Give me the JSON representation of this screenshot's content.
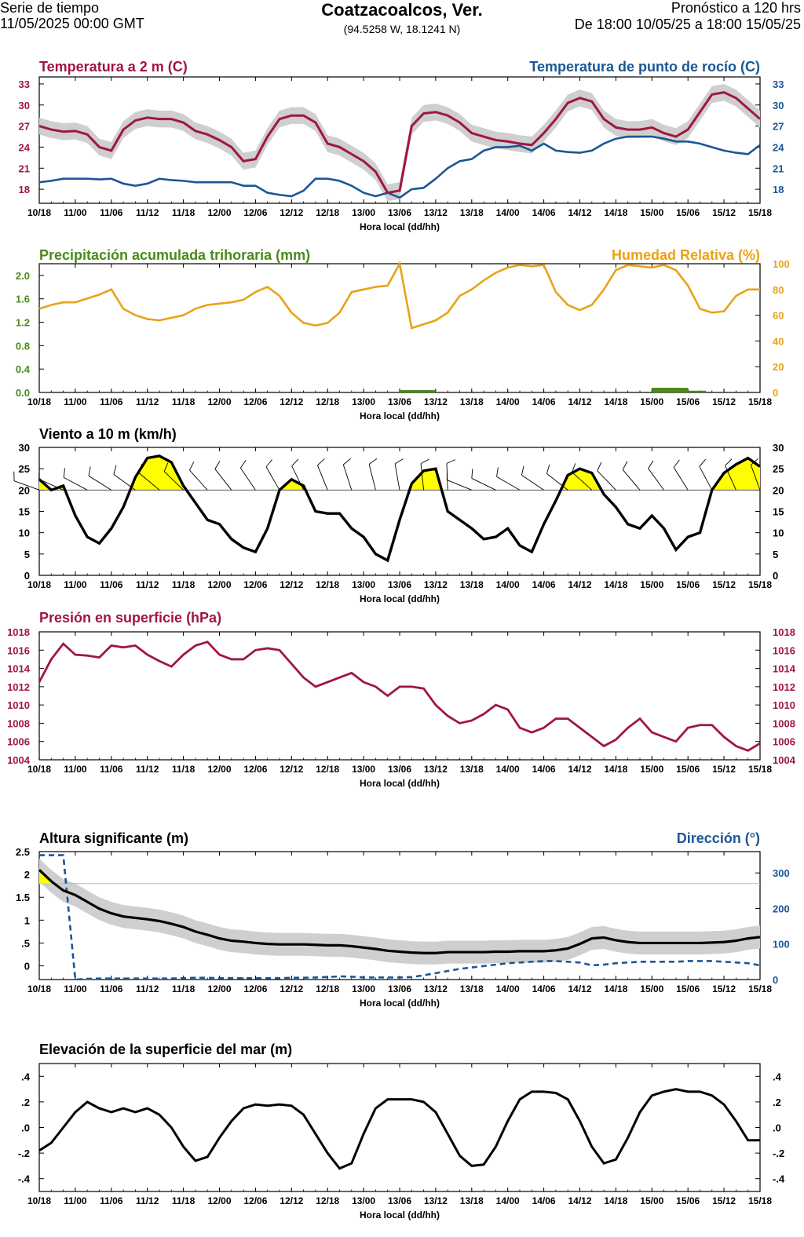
{
  "header": {
    "left_line1": "Serie de tiempo",
    "left_line2": "11/05/2025 00:00 GMT",
    "title": "Coatzacoalcos, Ver.",
    "coords": "(94.5258 W, 18.1241 N)",
    "right_line1": "Pronóstico a 120 hrs",
    "right_line2": "De 18:00 10/05/25 a 18:00 15/05/25"
  },
  "colors": {
    "temp": "#a01640",
    "dew": "#1a5796",
    "precip": "#4a8a1a",
    "rh": "#e8a317",
    "black": "#000000",
    "band": "#cfcfcf",
    "yellow": "#ffff00",
    "wave_dir": "#1a5796"
  },
  "x_axis": {
    "label": "Hora local (dd/hh)",
    "ticks": [
      "10/18",
      "11/00",
      "11/06",
      "11/12",
      "11/18",
      "12/00",
      "12/06",
      "12/12",
      "12/18",
      "13/00",
      "13/06",
      "13/12",
      "13/18",
      "14/00",
      "14/06",
      "14/12",
      "14/18",
      "15/00",
      "15/06",
      "15/12",
      "15/18"
    ]
  },
  "chart_data": [
    {
      "id": "temp",
      "type": "line",
      "title_left": "Temperatura a 2 m (C)",
      "title_right": "Temperatura de punto de rocío (C)",
      "xlabel": "Hora local (dd/hh)",
      "x_hours": [
        0,
        2,
        4,
        6,
        8,
        10,
        12,
        14,
        16,
        18,
        20,
        22,
        24,
        26,
        28,
        30,
        32,
        34,
        36,
        38,
        40,
        42,
        44,
        46,
        48,
        50,
        52,
        54,
        56,
        58,
        60,
        62,
        64,
        66,
        68,
        70,
        72,
        74,
        76,
        78,
        80,
        82,
        84,
        86,
        88,
        90,
        92,
        94,
        96,
        98,
        100,
        102,
        104,
        106,
        108,
        110,
        112,
        114,
        116,
        118,
        120
      ],
      "ylim_left": [
        16,
        34
      ],
      "yticks_left": [
        "18",
        "21",
        "24",
        "27",
        "30",
        "33"
      ],
      "ylim_right": [
        16,
        34
      ],
      "yticks_right": [
        "18",
        "21",
        "24",
        "27",
        "30",
        "33"
      ],
      "series": [
        {
          "name": "Temperatura a 2 m",
          "band": 1.2,
          "values": [
            27,
            26.5,
            26.2,
            26.3,
            25.8,
            24,
            23.5,
            26.5,
            27.8,
            28.2,
            28,
            28,
            27.5,
            26.3,
            25.8,
            25,
            24,
            22,
            22.3,
            25.5,
            28,
            28.5,
            28.5,
            27.5,
            24.5,
            24,
            23,
            22,
            20.5,
            17.5,
            17.8,
            27,
            28.8,
            29,
            28.5,
            27.5,
            26,
            25.5,
            25,
            24.8,
            24.5,
            24.3,
            26,
            28,
            30.3,
            31,
            30.5,
            28,
            26.8,
            26.5,
            26.5,
            26.8,
            26,
            25.5,
            26.5,
            29,
            31.5,
            31.8,
            31,
            29.5,
            28
          ]
        },
        {
          "name": "Temperatura de punto de rocío",
          "values": [
            19,
            19.2,
            19.5,
            19.5,
            19.5,
            19.4,
            19.5,
            18.8,
            18.5,
            18.8,
            19.5,
            19.3,
            19.2,
            19,
            19,
            19,
            19,
            18.5,
            18.5,
            17.5,
            17.2,
            17,
            17.8,
            19.5,
            19.5,
            19.2,
            18.5,
            17.5,
            17,
            17.5,
            16.8,
            18,
            18.2,
            19.5,
            21,
            22,
            22.3,
            23.5,
            24,
            24,
            24.2,
            23.5,
            24.5,
            23.5,
            23.3,
            23.2,
            23.5,
            24.5,
            25.2,
            25.5,
            25.5,
            25.5,
            25.2,
            24.8,
            24.8,
            24.5,
            24,
            23.5,
            23.2,
            23,
            24.3
          ]
        }
      ]
    },
    {
      "id": "rh",
      "type": "line",
      "title_left": "Precipitación acumulada trihoraria (mm)",
      "title_right": "Humedad Relativa (%)",
      "xlabel": "Hora local (dd/hh)",
      "ylim_left": [
        0,
        2.2
      ],
      "yticks_left": [
        "0.0",
        "0.4",
        "0.8",
        "1.2",
        "1.6",
        "2.0"
      ],
      "ylim_right": [
        0,
        100
      ],
      "yticks_right": [
        "0",
        "20",
        "40",
        "60",
        "80",
        "100"
      ],
      "precip_bars": [
        {
          "x_start": 60,
          "x_end": 66,
          "value": 0.04
        },
        {
          "x_start": 102,
          "x_end": 108,
          "value": 0.08
        },
        {
          "x_start": 108,
          "x_end": 111,
          "value": 0.03
        }
      ],
      "series": [
        {
          "name": "Humedad Relativa",
          "values": [
            65,
            68,
            70,
            70,
            73,
            76,
            80,
            65,
            60,
            57,
            56,
            58,
            60,
            65,
            68,
            69,
            70,
            72,
            78,
            82,
            75,
            62,
            54,
            52,
            54,
            62,
            78,
            80,
            82,
            83,
            100,
            50,
            53,
            56,
            62,
            75,
            80,
            87,
            93,
            97,
            99,
            98,
            99,
            78,
            68,
            64,
            68,
            80,
            95,
            99,
            98,
            97,
            99,
            95,
            83,
            65,
            62,
            63,
            75,
            80,
            80
          ]
        }
      ]
    },
    {
      "id": "wind",
      "type": "line",
      "title_left": "Viento a 10 m (km/h)",
      "xlabel": "Hora local (dd/hh)",
      "ylim_left": [
        0,
        30
      ],
      "yticks_left": [
        "0",
        "5",
        "10",
        "15",
        "20",
        "25",
        "30"
      ],
      "ylim_right": [
        0,
        30
      ],
      "yticks_right": [
        "0",
        "5",
        "10",
        "15",
        "20",
        "25",
        "30"
      ],
      "threshold": 20,
      "series": [
        {
          "name": "Viento a 10 m",
          "values": [
            22.5,
            20,
            21,
            14,
            9,
            7.5,
            11,
            16,
            23,
            27.5,
            28,
            26.5,
            21,
            17,
            13,
            12,
            8.5,
            6.5,
            5.5,
            11,
            20,
            22.5,
            21,
            15,
            14.5,
            14.5,
            11,
            9,
            5,
            3.5,
            13,
            21.5,
            24.5,
            25,
            15,
            13,
            11,
            8.5,
            9,
            11,
            7,
            5.5,
            12,
            17.5,
            23.5,
            25,
            24,
            19,
            16,
            12,
            11,
            14,
            11,
            6,
            9,
            10,
            20,
            24,
            26,
            27.5,
            25.5
          ]
        }
      ]
    },
    {
      "id": "pres",
      "type": "line",
      "title_left": "Presión en superficie (hPa)",
      "xlabel": "Hora local (dd/hh)",
      "ylim_left": [
        1004,
        1018
      ],
      "yticks_left": [
        "1004",
        "1006",
        "1008",
        "1010",
        "1012",
        "1014",
        "1016",
        "1018"
      ],
      "ylim_right": [
        1004,
        1018
      ],
      "yticks_right": [
        "1004",
        "1006",
        "1008",
        "1010",
        "1012",
        "1014",
        "1016",
        "1018"
      ],
      "series": [
        {
          "name": "Presión en superficie",
          "values": [
            1012.5,
            1015,
            1016.7,
            1015.5,
            1015.4,
            1015.2,
            1016.5,
            1016.3,
            1016.5,
            1015.5,
            1014.8,
            1014.2,
            1015.5,
            1016.5,
            1016.9,
            1015.5,
            1015,
            1015,
            1016,
            1016.2,
            1016,
            1014.5,
            1013,
            1012,
            1012.5,
            1013,
            1013.5,
            1012.5,
            1012,
            1011,
            1012,
            1012,
            1011.8,
            1010,
            1008.8,
            1008,
            1008.3,
            1009,
            1010,
            1009.5,
            1007.5,
            1007,
            1007.5,
            1008.5,
            1008.5,
            1007.5,
            1006.5,
            1005.5,
            1006.2,
            1007.5,
            1008.5,
            1007,
            1006.5,
            1006,
            1007.5,
            1007.8,
            1007.8,
            1006.5,
            1005.5,
            1005,
            1005.8
          ]
        }
      ]
    },
    {
      "id": "wave",
      "type": "line",
      "title_left": "Altura significante (m)",
      "title_right": "Dirección (°)",
      "xlabel": "Hora local (dd/hh)",
      "ylim_left": [
        -0.3,
        2.5
      ],
      "yticks_left": [
        "0",
        ".5",
        "1",
        "1.5",
        "2",
        "2.5"
      ],
      "ylim_right": [
        0,
        360
      ],
      "yticks_right": [
        "0",
        "100",
        "200",
        "300"
      ],
      "series": [
        {
          "name": "Altura significante",
          "band": 0.25,
          "values": [
            2.1,
            1.85,
            1.65,
            1.55,
            1.4,
            1.25,
            1.15,
            1.08,
            1.05,
            1.02,
            0.98,
            0.92,
            0.85,
            0.75,
            0.68,
            0.6,
            0.55,
            0.53,
            0.5,
            0.48,
            0.47,
            0.47,
            0.47,
            0.46,
            0.45,
            0.45,
            0.43,
            0.4,
            0.37,
            0.33,
            0.31,
            0.29,
            0.28,
            0.28,
            0.3,
            0.3,
            0.3,
            0.3,
            0.31,
            0.31,
            0.32,
            0.32,
            0.32,
            0.34,
            0.38,
            0.48,
            0.6,
            0.62,
            0.56,
            0.52,
            0.5,
            0.5,
            0.5,
            0.5,
            0.5,
            0.5,
            0.51,
            0.52,
            0.55,
            0.6,
            0.63
          ]
        },
        {
          "name": "Dirección",
          "values": [
            350,
            350,
            350,
            0,
            2,
            3,
            3,
            3,
            3,
            3,
            3,
            3,
            4,
            5,
            5,
            4,
            4,
            4,
            4,
            4,
            4,
            5,
            5,
            6,
            7,
            9,
            8,
            6,
            6,
            6,
            6,
            7,
            12,
            18,
            24,
            30,
            34,
            38,
            42,
            46,
            48,
            50,
            52,
            52,
            50,
            48,
            40,
            42,
            46,
            48,
            50,
            50,
            50,
            50,
            52,
            52,
            52,
            50,
            48,
            46,
            40
          ]
        }
      ]
    },
    {
      "id": "ssh",
      "type": "line",
      "title_left": "Elevación de la superficie del mar (m)",
      "xlabel": "Hora local (dd/hh)",
      "ylim_left": [
        -0.5,
        0.5
      ],
      "yticks_left": [
        "-.4",
        "-.2",
        ".0",
        ".2",
        ".4"
      ],
      "ylim_right": [
        -0.5,
        0.5
      ],
      "yticks_right": [
        "-.4",
        "-.2",
        ".0",
        ".2",
        ".4"
      ],
      "series": [
        {
          "name": "Elevación de la superficie del mar",
          "values": [
            -0.18,
            -0.12,
            0.0,
            0.12,
            0.2,
            0.15,
            0.12,
            0.15,
            0.12,
            0.15,
            0.1,
            0.0,
            -0.15,
            -0.26,
            -0.23,
            -0.08,
            0.05,
            0.15,
            0.18,
            0.17,
            0.18,
            0.17,
            0.1,
            -0.05,
            -0.2,
            -0.32,
            -0.28,
            -0.05,
            0.15,
            0.22,
            0.22,
            0.22,
            0.2,
            0.12,
            -0.05,
            -0.22,
            -0.3,
            -0.29,
            -0.15,
            0.05,
            0.22,
            0.28,
            0.28,
            0.27,
            0.22,
            0.05,
            -0.15,
            -0.28,
            -0.25,
            -0.08,
            0.12,
            0.25,
            0.28,
            0.3,
            0.28,
            0.28,
            0.25,
            0.18,
            0.05,
            -0.1,
            -0.1
          ]
        }
      ]
    }
  ]
}
